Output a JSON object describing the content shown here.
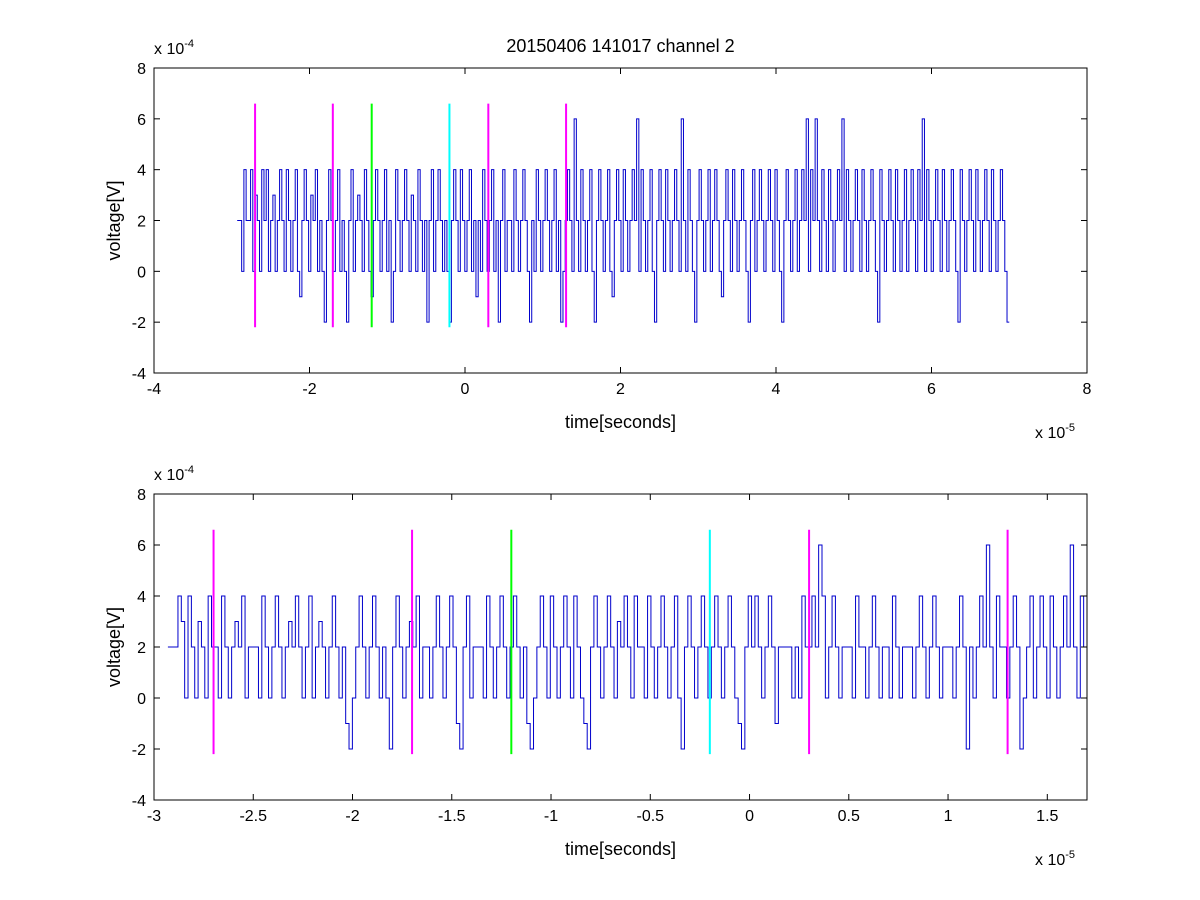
{
  "chart_data": [
    {
      "type": "line",
      "title": "20150406 141017 channel 2",
      "xlabel": "time[seconds]",
      "ylabel": "voltage[V]",
      "x_multiplier": {
        "base": "x 10",
        "exp": "-5"
      },
      "y_multiplier": {
        "base": "x 10",
        "exp": "-4"
      },
      "xlim": [
        -4,
        8
      ],
      "ylim": [
        -4,
        8
      ],
      "x_ticks": [
        "-4",
        "-2",
        "0",
        "2",
        "4",
        "6",
        "8"
      ],
      "y_ticks": [
        "-4",
        "-2",
        "0",
        "2",
        "4",
        "6",
        "8"
      ],
      "grid": false,
      "series": [
        {
          "color": "#0000cc",
          "x_start": -2.93,
          "x_end": 7.0,
          "values": [
            2,
            2,
            0,
            4,
            2,
            2,
            4,
            0,
            3,
            2,
            0,
            4,
            2,
            4,
            0,
            2,
            3,
            0,
            2,
            4,
            2,
            0,
            4,
            2,
            0,
            2,
            4,
            0,
            -1,
            2,
            4,
            2,
            0,
            3,
            2,
            4,
            0,
            2,
            0,
            -2,
            2,
            4,
            2,
            0,
            2,
            4,
            0,
            2,
            0,
            -2,
            2,
            4,
            0,
            2,
            3,
            2,
            0,
            4,
            2,
            0,
            -1,
            2,
            4,
            2,
            0,
            2,
            4,
            0,
            2,
            -2,
            0,
            4,
            2,
            0,
            2,
            4,
            2,
            0,
            3,
            2,
            0,
            4,
            2,
            0,
            2,
            -2,
            2,
            4,
            0,
            2,
            4,
            2,
            0,
            2,
            0,
            -2,
            2,
            4,
            2,
            0,
            4,
            2,
            0,
            2,
            4,
            0,
            2,
            -1,
            2,
            0,
            4,
            2,
            0,
            2,
            4,
            0,
            2,
            -2,
            2,
            4,
            0,
            2,
            2,
            0,
            4,
            2,
            0,
            2,
            4,
            2,
            0,
            -2,
            2,
            0,
            4,
            2,
            0,
            2,
            4,
            2,
            0,
            2,
            4,
            0,
            2,
            -2,
            0,
            2,
            4,
            2,
            0,
            6,
            2,
            0,
            4,
            2,
            0,
            2,
            4,
            0,
            -2,
            2,
            4,
            2,
            0,
            2,
            4,
            0,
            -1,
            2,
            4,
            2,
            0,
            4,
            2,
            0,
            2,
            4,
            2,
            6,
            0,
            4,
            2,
            0,
            2,
            4,
            0,
            -2,
            2,
            4,
            2,
            0,
            4,
            2,
            0,
            2,
            4,
            2,
            0,
            6,
            2,
            0,
            4,
            2,
            0,
            -2,
            2,
            4,
            2,
            0,
            2,
            4,
            0,
            2,
            4,
            2,
            0,
            -1,
            2,
            4,
            2,
            0,
            4,
            2,
            0,
            2,
            4,
            2,
            0,
            -2,
            2,
            4,
            0,
            2,
            4,
            2,
            0,
            2,
            4,
            2,
            0,
            4,
            2,
            0,
            -2,
            2,
            4,
            2,
            0,
            2,
            4,
            0,
            2,
            4,
            2,
            6,
            0,
            4,
            2,
            6,
            2,
            0,
            4,
            2,
            0,
            4,
            2,
            0,
            2,
            4,
            2,
            6,
            0,
            4,
            2,
            0,
            2,
            4,
            2,
            0,
            4,
            2,
            0,
            2,
            4,
            2,
            0,
            -2,
            4,
            2,
            0,
            2,
            4,
            2,
            0,
            4,
            2,
            0,
            2,
            4,
            0,
            2,
            4,
            2,
            0,
            4,
            2,
            6,
            0,
            4,
            2,
            0,
            2,
            4,
            2,
            0,
            4,
            2,
            0,
            2,
            4,
            2,
            0,
            -2,
            4,
            2,
            0,
            2,
            4,
            2,
            0,
            4,
            2,
            0,
            2,
            4,
            2,
            0,
            4,
            2,
            0,
            2,
            4,
            2,
            0,
            -2
          ]
        }
      ],
      "markers": [
        {
          "x": -2.7,
          "color": "#ff00ff"
        },
        {
          "x": -1.7,
          "color": "#ff00ff"
        },
        {
          "x": -1.2,
          "color": "#00ff00"
        },
        {
          "x": -0.2,
          "color": "#00ffff"
        },
        {
          "x": 0.3,
          "color": "#ff00ff"
        },
        {
          "x": 1.3,
          "color": "#ff00ff"
        }
      ],
      "marker_range": [
        -2.2,
        6.6
      ]
    },
    {
      "type": "line",
      "title": "",
      "xlabel": "time[seconds]",
      "ylabel": "voltage[V]",
      "x_multiplier": {
        "base": "x 10",
        "exp": "-5"
      },
      "y_multiplier": {
        "base": "x 10",
        "exp": "-4"
      },
      "xlim": [
        -3.0,
        1.7
      ],
      "ylim": [
        -4,
        8
      ],
      "x_ticks": [
        "-3",
        "-2.5",
        "-2",
        "-1.5",
        "-1",
        "-0.5",
        "0",
        "0.5",
        "1",
        "1.5"
      ],
      "y_ticks": [
        "-4",
        "-2",
        "0",
        "2",
        "4",
        "6",
        "8"
      ],
      "grid": false,
      "series": [
        {
          "color": "#0000cc",
          "x_start": -2.93,
          "x_end": 1.7,
          "values": [
            2,
            2,
            2,
            4,
            3,
            0,
            4,
            2,
            0,
            3,
            2,
            0,
            4,
            2,
            2,
            0,
            4,
            2,
            0,
            2,
            3,
            2,
            4,
            0,
            2,
            2,
            2,
            0,
            4,
            2,
            0,
            2,
            4,
            2,
            0,
            2,
            3,
            2,
            4,
            2,
            0,
            2,
            4,
            0,
            2,
            3,
            2,
            0,
            2,
            4,
            2,
            0,
            2,
            -1,
            -2,
            0,
            2,
            4,
            2,
            0,
            2,
            4,
            2,
            0,
            2,
            0,
            -2,
            2,
            4,
            2,
            0,
            2,
            3,
            2,
            4,
            0,
            2,
            2,
            0,
            2,
            4,
            2,
            0,
            2,
            4,
            2,
            -1,
            -2,
            2,
            4,
            0,
            2,
            2,
            2,
            0,
            4,
            2,
            0,
            2,
            4,
            2,
            0,
            2,
            4,
            2,
            0,
            2,
            -1,
            -2,
            0,
            2,
            4,
            2,
            0,
            4,
            2,
            0,
            2,
            4,
            2,
            0,
            4,
            2,
            0,
            -1,
            -2,
            2,
            4,
            2,
            0,
            2,
            4,
            2,
            0,
            3,
            2,
            4,
            2,
            0,
            4,
            2,
            2,
            0,
            4,
            2,
            0,
            2,
            4,
            2,
            0,
            2,
            4,
            0,
            -2,
            2,
            4,
            2,
            0,
            2,
            4,
            2,
            0,
            2,
            4,
            2,
            0,
            2,
            4,
            2,
            0,
            -1,
            -2,
            2,
            4,
            2,
            4,
            2,
            0,
            2,
            4,
            2,
            -1,
            2,
            2,
            2,
            2,
            0,
            2,
            0,
            4,
            2,
            2,
            4,
            2,
            6,
            4,
            0,
            2,
            4,
            2,
            0,
            2,
            2,
            2,
            0,
            4,
            2,
            2,
            0,
            2,
            4,
            2,
            0,
            2,
            2,
            0,
            4,
            2,
            0,
            2,
            2,
            2,
            0,
            2,
            4,
            2,
            0,
            2,
            4,
            2,
            0,
            2,
            2,
            2,
            0,
            2,
            4,
            2,
            -2,
            2,
            0,
            2,
            4,
            2,
            6,
            2,
            0,
            4,
            2,
            2,
            0,
            2,
            4,
            2,
            -2,
            0,
            2,
            4,
            0,
            2,
            4,
            2,
            0,
            4,
            2,
            0,
            2,
            4,
            2,
            6,
            2,
            0,
            4,
            2
          ]
        }
      ],
      "markers": [
        {
          "x": -2.7,
          "color": "#ff00ff"
        },
        {
          "x": -1.7,
          "color": "#ff00ff"
        },
        {
          "x": -1.2,
          "color": "#00ff00"
        },
        {
          "x": -0.2,
          "color": "#00ffff"
        },
        {
          "x": 0.3,
          "color": "#ff00ff"
        },
        {
          "x": 1.3,
          "color": "#ff00ff"
        }
      ],
      "marker_range": [
        -2.2,
        6.6
      ]
    }
  ]
}
